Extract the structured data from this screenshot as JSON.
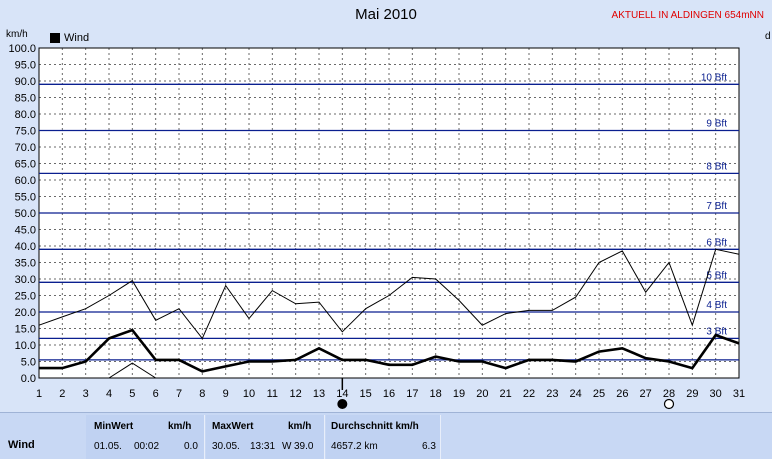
{
  "header": {
    "title": "Mai 2010",
    "badge": "AKTUELL IN ALDINGEN 654mNN",
    "unit_left": "km/h",
    "unit_right": "d"
  },
  "legend": {
    "series_label": "Wind"
  },
  "chart_data": {
    "type": "line",
    "title": "Mai 2010",
    "ylabel": "km/h",
    "xlabel": "",
    "ylim": [
      0,
      100
    ],
    "y_ticks": [
      "0.0",
      "5.0",
      "10.0",
      "15.0",
      "20.0",
      "25.0",
      "30.0",
      "35.0",
      "40.0",
      "45.0",
      "50.0",
      "55.0",
      "60.0",
      "65.0",
      "70.0",
      "75.0",
      "80.0",
      "85.0",
      "90.0",
      "95.0",
      "100.0"
    ],
    "x": [
      1,
      2,
      3,
      4,
      5,
      6,
      7,
      8,
      9,
      10,
      11,
      12,
      13,
      14,
      15,
      16,
      17,
      18,
      19,
      20,
      21,
      22,
      23,
      24,
      25,
      26,
      27,
      28,
      29,
      30,
      31
    ],
    "grid": true,
    "legend_position": "top-left",
    "series": [
      {
        "name": "Wind",
        "role": "mean",
        "values": [
          3,
          3,
          5,
          12,
          14.5,
          5.5,
          5.5,
          2,
          3.5,
          5,
          5,
          5.5,
          9,
          5.5,
          5.5,
          4,
          4,
          6.5,
          5,
          5,
          3,
          5.5,
          5.5,
          5,
          8,
          9,
          6,
          5,
          3,
          13,
          10.5
        ]
      },
      {
        "role": "gust",
        "values": [
          16,
          18.5,
          21,
          25,
          29.5,
          17.5,
          21,
          12,
          28,
          18,
          26.5,
          22.5,
          23,
          14,
          21,
          25,
          30.5,
          30,
          23.5,
          16,
          19.5,
          20.5,
          20.5,
          24.5,
          35,
          38.5,
          26,
          35,
          16,
          39,
          37.5
        ]
      },
      {
        "role": "min",
        "values": [
          null,
          null,
          null,
          0,
          4.5,
          0,
          null,
          null,
          null,
          null,
          null,
          null,
          null,
          null,
          null,
          null,
          null,
          null,
          null,
          null,
          null,
          null,
          null,
          null,
          null,
          null,
          null,
          null,
          null,
          null,
          null
        ]
      }
    ],
    "bft_lines": [
      {
        "label": "3 Bft",
        "value": 12
      },
      {
        "label": "4 Bft",
        "value": 20
      },
      {
        "label": "5 Bft",
        "value": 29
      },
      {
        "label": "6 Bft",
        "value": 39
      },
      {
        "label": "7 Bft",
        "value": 50
      },
      {
        "label": "8 Bft",
        "value": 62
      },
      {
        "label": "9 Bft",
        "value": 75
      },
      {
        "label": "10 Bft",
        "value": 89
      },
      {
        "label": "",
        "value": 5.5
      }
    ],
    "moon_markers": [
      {
        "day": 14,
        "phase": "new"
      },
      {
        "day": 28,
        "phase": "full"
      }
    ],
    "colors": {
      "mean": "#000000",
      "gust": "#000000",
      "bft": "#0a1f8f",
      "grid": "#6a6a6a",
      "plot_bg": "#ffffff"
    }
  },
  "stats": {
    "row_label": "Wind",
    "min": {
      "header": "MinWert",
      "unit": "km/h",
      "date": "01.05.",
      "time": "00:02",
      "value": "0.0"
    },
    "max": {
      "header": "MaxWert",
      "unit": "km/h",
      "date": "30.05.",
      "time": "13:31",
      "dir": "W",
      "value": "39.0"
    },
    "avg": {
      "header": "Durchschnitt km/h",
      "distance": "4657.2 km",
      "value": "6.3"
    }
  }
}
